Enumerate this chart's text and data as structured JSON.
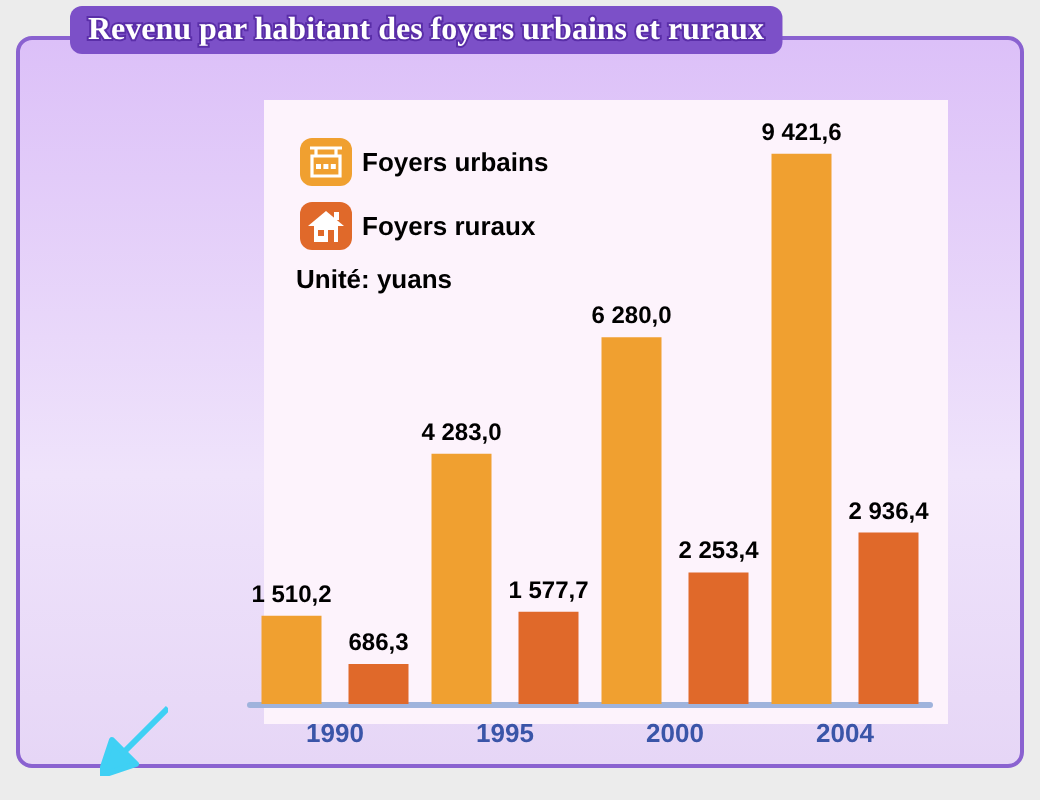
{
  "chart_data": {
    "type": "bar",
    "title": "Revenu par habitant des foyers urbains et ruraux",
    "categories": [
      "1990",
      "1995",
      "2000",
      "2004"
    ],
    "series": [
      {
        "name": "Foyers urbains",
        "color": "#f0a030",
        "values": [
          1510.2,
          4283.0,
          6280.0,
          9421.6
        ],
        "value_labels": [
          "1 510,2",
          "4 283,0",
          "6 280,0",
          "9 421,6"
        ]
      },
      {
        "name": "Foyers ruraux",
        "color": "#e0692a",
        "values": [
          686.3,
          1577.7,
          2253.4,
          2936.4
        ],
        "value_labels": [
          "686,3",
          "1 577,7",
          "2 253,4",
          "2 936,4"
        ]
      }
    ],
    "annotations": [
      "Unité: yuans"
    ],
    "legend": "top left",
    "grid": false,
    "tick_labels": "x"
  }
}
